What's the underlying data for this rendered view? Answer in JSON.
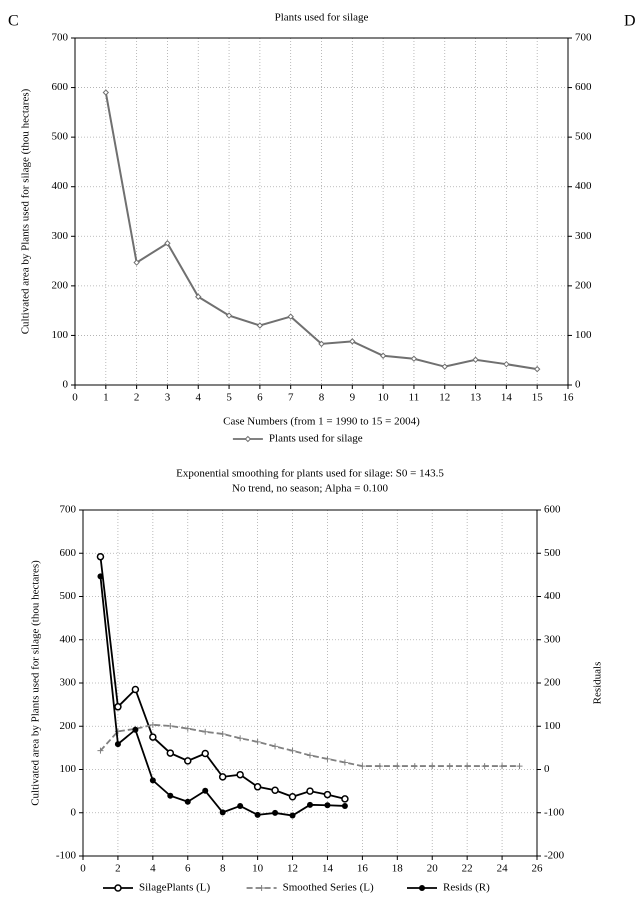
{
  "panel_labels": [
    "C",
    "D"
  ],
  "chart_data": [
    {
      "type": "line",
      "title": "Plants used for silage",
      "x_label": "Case Numbers (from 1 = 1990 to 15 = 2004)",
      "y_label": "Cultivated area by Plants used for silage (thou hectares)",
      "xlim": [
        0,
        16
      ],
      "xticks": [
        0,
        1,
        2,
        3,
        4,
        5,
        6,
        7,
        8,
        9,
        10,
        11,
        12,
        13,
        14,
        15,
        16
      ],
      "ylim": [
        0,
        700
      ],
      "yticks": [
        0,
        100,
        200,
        300,
        400,
        500,
        600,
        700
      ],
      "y2lim": [
        0,
        700
      ],
      "y2ticks": [
        0,
        100,
        200,
        300,
        400,
        500,
        600,
        700
      ],
      "grid": true,
      "legend": "bottom",
      "series": [
        {
          "name": "Plants used for silage",
          "color": "#707070",
          "marker": "diamond",
          "line_style": "solid",
          "x": [
            1,
            2,
            3,
            4,
            5,
            6,
            7,
            8,
            9,
            10,
            11,
            12,
            13,
            14,
            15
          ],
          "values": [
            590,
            247,
            286,
            178,
            140,
            120,
            138,
            83,
            88,
            59,
            53,
            37,
            51,
            42,
            32
          ]
        }
      ]
    },
    {
      "type": "line",
      "title": "Exponential smoothing for plants used for silage:  S0 = 143.5",
      "subtitle": "No trend, no season; Alpha = 0.100",
      "y_label": "Cultivated area by Plants used for silage (thou hectares)",
      "y2_label": "Residuals",
      "xlim": [
        0,
        26
      ],
      "xticks": [
        0,
        2,
        4,
        6,
        8,
        10,
        12,
        14,
        16,
        18,
        20,
        22,
        24,
        26
      ],
      "ylim": [
        -100,
        700
      ],
      "yticks": [
        -100,
        0,
        100,
        200,
        300,
        400,
        500,
        600,
        700
      ],
      "y2lim": [
        -200,
        600
      ],
      "y2ticks": [
        -200,
        -100,
        0,
        100,
        200,
        300,
        400,
        500,
        600
      ],
      "grid": true,
      "legend": "bottom",
      "series": [
        {
          "name": "SilagePlants (L)",
          "color": "#000000",
          "marker": "open-circle",
          "line_style": "solid",
          "x": [
            1,
            2,
            3,
            4,
            5,
            6,
            7,
            8,
            9,
            10,
            11,
            12,
            13,
            14,
            15
          ],
          "values": [
            592,
            245,
            285,
            175,
            138,
            120,
            137,
            83,
            88,
            60,
            52,
            37,
            50,
            42,
            32
          ]
        },
        {
          "name": "Smoothed Series (L)",
          "color": "#808080",
          "marker": "plus",
          "line_style": "dashed",
          "x": [
            1,
            2,
            3,
            4,
            5,
            6,
            7,
            8,
            9,
            10,
            11,
            12,
            13,
            14,
            15,
            16,
            17,
            18,
            19,
            20,
            21,
            22,
            23,
            24,
            25
          ],
          "values": [
            143.5,
            188.2,
            194,
            203.2,
            200.7,
            194.6,
            187.2,
            182.2,
            172.3,
            163.9,
            153.4,
            143.4,
            132.7,
            124.6,
            116.3,
            107.9,
            107.9,
            107.9,
            107.9,
            107.9,
            107.9,
            107.9,
            107.9,
            107.9,
            107.9
          ]
        },
        {
          "name": "Resids (R)",
          "color": "#000000",
          "marker": "filled-circle",
          "line_style": "solid",
          "axis": "y2",
          "x": [
            1,
            2,
            3,
            4,
            5,
            6,
            7,
            8,
            9,
            10,
            11,
            12,
            13,
            14,
            15
          ],
          "values": [
            446.5,
            58.8,
            92,
            -25.2,
            -60.7,
            -74.6,
            -49.2,
            -99.2,
            -84.3,
            -104.9,
            -100.4,
            -106.4,
            -81.7,
            -82.6,
            -84.3
          ]
        }
      ]
    }
  ]
}
